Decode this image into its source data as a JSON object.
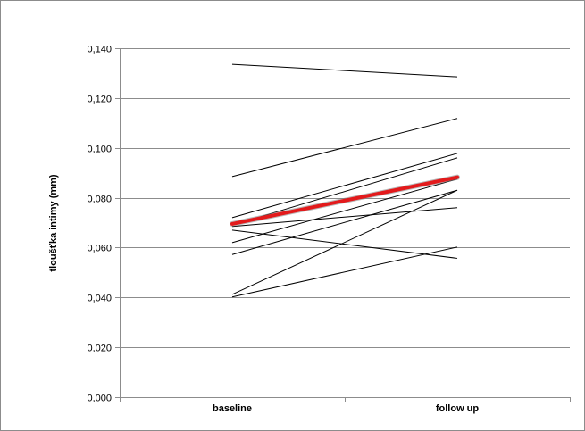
{
  "chart_data": {
    "type": "line",
    "categories": [
      "baseline",
      "follow up"
    ],
    "ylabel": "tloušťka intimy (mm)",
    "xlabel": "",
    "title": "",
    "ylim": [
      0,
      0.14
    ],
    "yticks": [
      "0,000",
      "0,020",
      "0,040",
      "0,060",
      "0,080",
      "0,100",
      "0,120",
      "0,140"
    ],
    "grid": true,
    "legend": "none",
    "series": [
      {
        "values": [
          0.1335,
          0.1285
        ]
      },
      {
        "values": [
          0.0885,
          0.1118
        ]
      },
      {
        "values": [
          0.072,
          0.0978
        ]
      },
      {
        "values": [
          0.069,
          0.096
        ]
      },
      {
        "values": [
          0.062,
          0.0875
        ]
      },
      {
        "values": [
          0.0685,
          0.076
        ]
      },
      {
        "values": [
          0.067,
          0.0557
        ]
      },
      {
        "values": [
          0.0572,
          0.083
        ]
      },
      {
        "values": [
          0.0412,
          0.083
        ]
      },
      {
        "values": [
          0.0402,
          0.0602
        ]
      },
      {
        "values": [
          0.0695,
          0.0882
        ],
        "highlight": true
      }
    ],
    "colors": {
      "line": "#000000",
      "highlight": "#e31a1c",
      "grid": "#8c8c8c"
    }
  }
}
